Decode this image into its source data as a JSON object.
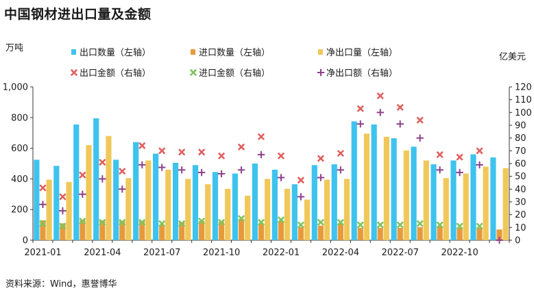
{
  "title": "中国钢材进出口量及金额",
  "source": "资料来源：Wind，惠誉博华",
  "colors": {
    "export_volume": "#3EC3EE",
    "import_volume": "#E69A3C",
    "net_export_volume": "#F0C85A",
    "export_value": "#E0605E",
    "import_value": "#82C45C",
    "net_export_value": "#8E3F8C",
    "axis": "#333333"
  },
  "chart_data": {
    "type": "bar",
    "title": "中国钢材进出口量及金额",
    "left_unit": "万吨",
    "right_unit": "亿美元",
    "ylim_left": [
      0,
      1000
    ],
    "ylim_right": [
      0,
      120
    ],
    "yticks_left": [
      "0",
      "200",
      "400",
      "600",
      "800",
      "1,000"
    ],
    "yticks_right": [
      "0",
      "10",
      "20",
      "30",
      "40",
      "50",
      "60",
      "70",
      "80",
      "90",
      "100",
      "110",
      "120"
    ],
    "grid": false,
    "legend_position": "top",
    "categories": [
      "2021-01",
      "2021-02",
      "2021-03",
      "2021-04",
      "2021-05",
      "2021-06",
      "2021-07",
      "2021-08",
      "2021-09",
      "2021-10",
      "2021-11",
      "2021-12",
      "2022-01",
      "2022-02",
      "2022-03",
      "2022-04",
      "2022-05",
      "2022-06",
      "2022-07",
      "2022-08",
      "2022-09",
      "2022-10",
      "2022-11",
      "2022-12"
    ],
    "x_tick_labels": [
      "2021-01",
      "2021-04",
      "2021-07",
      "2021-10",
      "2022-01",
      "2022-04",
      "2022-07",
      "2022-10"
    ],
    "bar_series": [
      {
        "name": "出口数量（左轴）",
        "axis": "left",
        "values": [
          525,
          485,
          755,
          795,
          525,
          640,
          565,
          505,
          490,
          445,
          435,
          500,
          460,
          365,
          490,
          495,
          775,
          755,
          665,
          610,
          495,
          520,
          560,
          540
        ]
      },
      {
        "name": "进口数量（左轴）",
        "axis": "left",
        "values": [
          130,
          110,
          130,
          130,
          125,
          125,
          100,
          115,
          125,
          120,
          140,
          110,
          125,
          85,
          95,
          110,
          80,
          80,
          80,
          85,
          90,
          80,
          80,
          70
        ]
      },
      {
        "name": "净出口量（左轴）",
        "axis": "left",
        "values": [
          395,
          380,
          620,
          680,
          405,
          520,
          460,
          400,
          365,
          335,
          290,
          400,
          335,
          265,
          395,
          400,
          695,
          675,
          585,
          520,
          405,
          435,
          480,
          470
        ]
      }
    ],
    "marker_series": [
      {
        "name": "出口金额（右轴）",
        "axis": "right",
        "marker": "x",
        "values": [
          41,
          34,
          51,
          61,
          54,
          74,
          70,
          69,
          69,
          66,
          73,
          81,
          66,
          47,
          64,
          68,
          103,
          113,
          104,
          94,
          67,
          65,
          70,
          null
        ]
      },
      {
        "name": "进口金额（右轴）",
        "axis": "right",
        "marker": "x",
        "values": [
          13,
          11,
          15,
          14,
          14,
          14,
          13,
          13,
          15,
          14,
          17,
          14,
          16,
          12,
          14,
          14,
          12,
          12,
          12,
          13,
          12,
          11,
          11,
          null
        ]
      },
      {
        "name": "净出口额（右轴）",
        "axis": "right",
        "marker": "+",
        "values": [
          28,
          23,
          36,
          48,
          40,
          59,
          57,
          55,
          53,
          52,
          55,
          67,
          49,
          34,
          49,
          55,
          91,
          100,
          91,
          80,
          55,
          53,
          59,
          0
        ]
      }
    ]
  }
}
